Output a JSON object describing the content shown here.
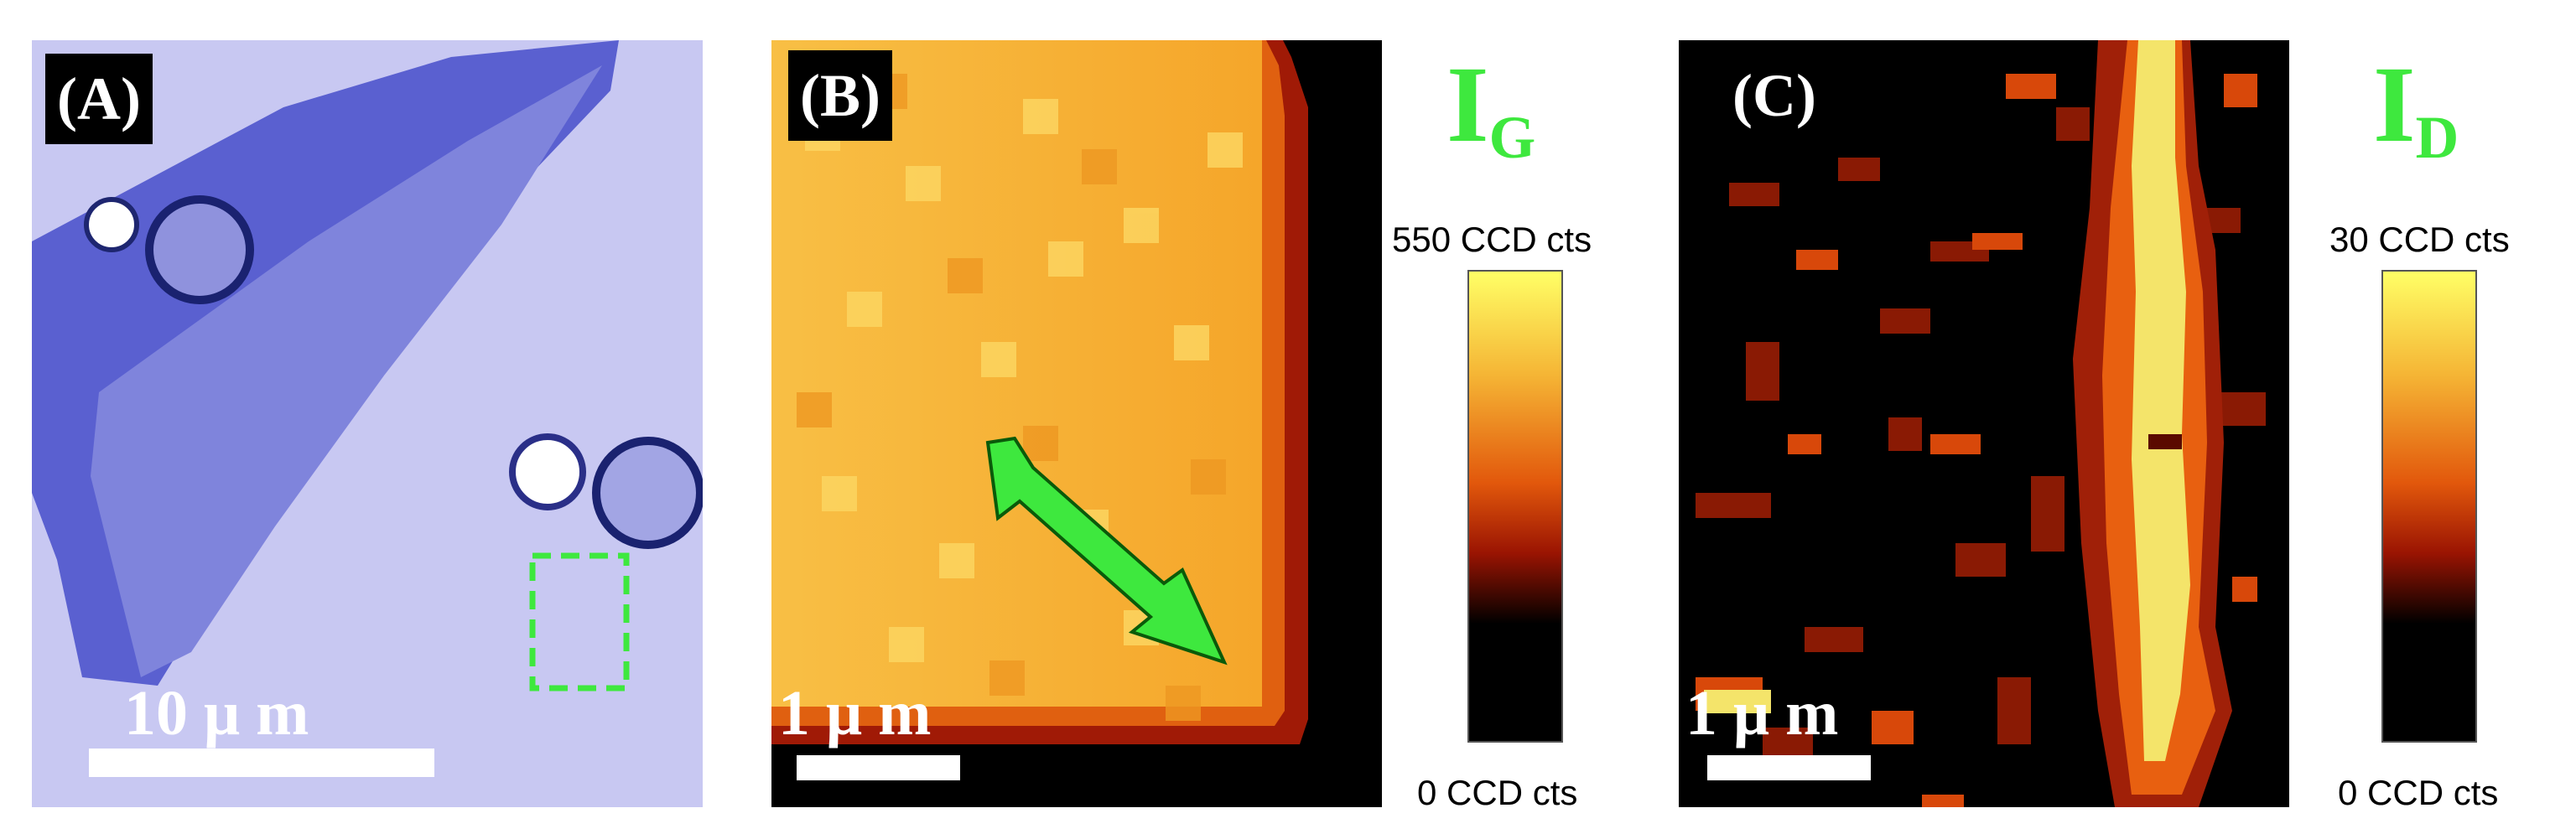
{
  "panel_a": {
    "label": "(A)",
    "scalebar_text": "10 μ m"
  },
  "panel_b": {
    "label": "(B)",
    "scalebar_text": "1 μ m",
    "map_symbol": "I",
    "map_symbol_sub": "G",
    "colorbar_max": "550 CCD cts",
    "colorbar_min": "0 CCD cts"
  },
  "panel_c": {
    "label": "(C)",
    "scalebar_text": "1 μ m",
    "map_symbol": "I",
    "map_symbol_sub": "D",
    "colorbar_max": "30 CCD cts",
    "colorbar_min": "0 CCD cts"
  },
  "colors": {
    "accent_green": "#3ee83e",
    "optical_bg": "#c8c8f2",
    "flake": "#6f74d6",
    "map_high": "#f5e85a",
    "map_mid": "#e06a10",
    "map_low": "#000000"
  }
}
